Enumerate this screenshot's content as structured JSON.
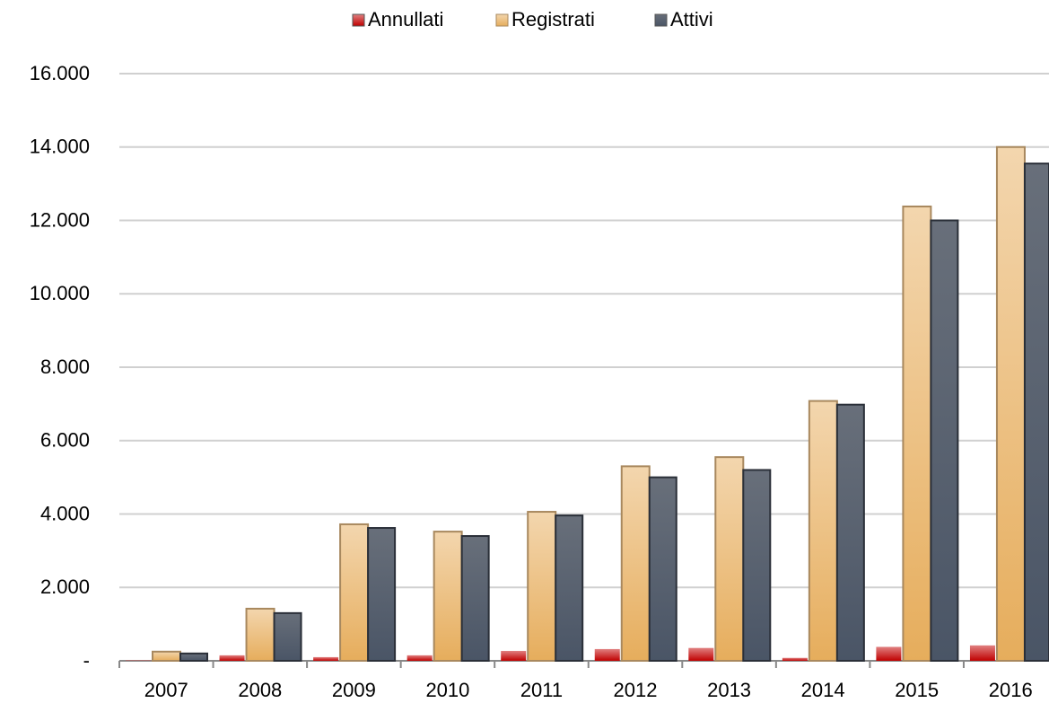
{
  "chart_data": {
    "type": "bar",
    "categories": [
      "2007",
      "2008",
      "2009",
      "2010",
      "2011",
      "2012",
      "2013",
      "2014",
      "2015",
      "2016"
    ],
    "series": [
      {
        "name": "Annullati",
        "color": "#c00000",
        "values": [
          10,
          150,
          100,
          150,
          270,
          320,
          350,
          80,
          380,
          420
        ]
      },
      {
        "name": "Registrati",
        "color": "#e6ad5c",
        "values": [
          250,
          1420,
          3720,
          3520,
          4060,
          5300,
          5550,
          7080,
          12380,
          14000
        ]
      },
      {
        "name": "Attivi",
        "color": "#4a5566",
        "values": [
          200,
          1300,
          3620,
          3400,
          3960,
          5000,
          5200,
          6980,
          12000,
          13550
        ]
      }
    ],
    "ylim": [
      0,
      16000
    ],
    "yticks": [
      {
        "value": 0,
        "label": "-"
      },
      {
        "value": 2000,
        "label": "2.000"
      },
      {
        "value": 4000,
        "label": "4.000"
      },
      {
        "value": 6000,
        "label": "6.000"
      },
      {
        "value": 8000,
        "label": "8.000"
      },
      {
        "value": 10000,
        "label": "10.000"
      },
      {
        "value": 12000,
        "label": "12.000"
      },
      {
        "value": 14000,
        "label": "14.000"
      },
      {
        "value": 16000,
        "label": "16.000"
      }
    ],
    "grid": true,
    "legend": "top"
  }
}
